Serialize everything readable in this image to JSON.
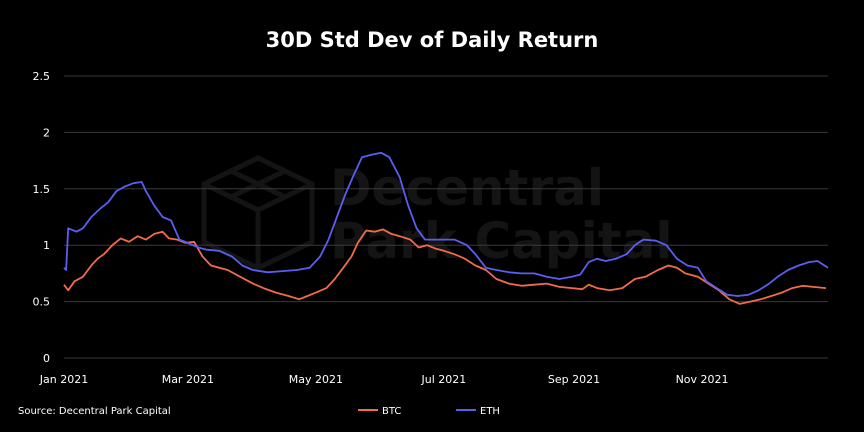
{
  "chart_data": {
    "type": "line",
    "title": "30D Std Dev of Daily Return",
    "source": "Source: Decentral Park Capital",
    "watermark": [
      "Decentral",
      "Park Capital"
    ],
    "xlabel": "",
    "ylabel": "",
    "x_start": "2021-01-01",
    "x_end": "2021-12-31",
    "x_ticks": [
      {
        "label": "Jan 2021",
        "date": "2021-01-01"
      },
      {
        "label": "Mar 2021",
        "date": "2021-03-01"
      },
      {
        "label": "May 2021",
        "date": "2021-05-01"
      },
      {
        "label": "Jul 2021",
        "date": "2021-07-01"
      },
      {
        "label": "Sep 2021",
        "date": "2021-09-01"
      },
      {
        "label": "Nov 2021",
        "date": "2021-11-01"
      }
    ],
    "ylim": [
      0,
      2.5
    ],
    "y_ticks": [
      {
        "label": "0",
        "value": 0
      },
      {
        "label": "0.5",
        "value": 0.5
      },
      {
        "label": "1",
        "value": 1
      },
      {
        "label": "1.5",
        "value": 1.5
      },
      {
        "label": "2",
        "value": 2
      },
      {
        "label": "2.5",
        "value": 2.5
      }
    ],
    "grid": true,
    "legend_position": "bottom-center",
    "series": [
      {
        "name": "BTC",
        "color": "#F26B4B",
        "points": [
          [
            "2021-01-01",
            0.65
          ],
          [
            "2021-01-03",
            0.6
          ],
          [
            "2021-01-06",
            0.68
          ],
          [
            "2021-01-10",
            0.72
          ],
          [
            "2021-01-14",
            0.82
          ],
          [
            "2021-01-17",
            0.88
          ],
          [
            "2021-01-20",
            0.92
          ],
          [
            "2021-01-24",
            1.0
          ],
          [
            "2021-01-28",
            1.06
          ],
          [
            "2021-02-01",
            1.03
          ],
          [
            "2021-02-05",
            1.08
          ],
          [
            "2021-02-09",
            1.05
          ],
          [
            "2021-02-13",
            1.1
          ],
          [
            "2021-02-17",
            1.12
          ],
          [
            "2021-02-20",
            1.06
          ],
          [
            "2021-02-24",
            1.05
          ],
          [
            "2021-02-28",
            1.02
          ],
          [
            "2021-03-04",
            1.03
          ],
          [
            "2021-03-08",
            0.9
          ],
          [
            "2021-03-12",
            0.82
          ],
          [
            "2021-03-16",
            0.8
          ],
          [
            "2021-03-20",
            0.78
          ],
          [
            "2021-03-26",
            0.72
          ],
          [
            "2021-04-01",
            0.66
          ],
          [
            "2021-04-06",
            0.62
          ],
          [
            "2021-04-12",
            0.58
          ],
          [
            "2021-04-18",
            0.55
          ],
          [
            "2021-04-23",
            0.52
          ],
          [
            "2021-04-27",
            0.55
          ],
          [
            "2021-05-01",
            0.58
          ],
          [
            "2021-05-06",
            0.62
          ],
          [
            "2021-05-10",
            0.7
          ],
          [
            "2021-05-14",
            0.8
          ],
          [
            "2021-05-18",
            0.9
          ],
          [
            "2021-05-21",
            1.02
          ],
          [
            "2021-05-25",
            1.13
          ],
          [
            "2021-05-29",
            1.12
          ],
          [
            "2021-06-02",
            1.14
          ],
          [
            "2021-06-06",
            1.1
          ],
          [
            "2021-06-10",
            1.08
          ],
          [
            "2021-06-15",
            1.05
          ],
          [
            "2021-06-19",
            0.98
          ],
          [
            "2021-06-23",
            1.0
          ],
          [
            "2021-06-27",
            0.97
          ],
          [
            "2021-07-01",
            0.95
          ],
          [
            "2021-07-06",
            0.92
          ],
          [
            "2021-07-11",
            0.88
          ],
          [
            "2021-07-16",
            0.82
          ],
          [
            "2021-07-21",
            0.78
          ],
          [
            "2021-07-26",
            0.7
          ],
          [
            "2021-08-01",
            0.66
          ],
          [
            "2021-08-07",
            0.64
          ],
          [
            "2021-08-13",
            0.65
          ],
          [
            "2021-08-19",
            0.66
          ],
          [
            "2021-08-25",
            0.63
          ],
          [
            "2021-08-31",
            0.62
          ],
          [
            "2021-09-05",
            0.61
          ],
          [
            "2021-09-08",
            0.65
          ],
          [
            "2021-09-12",
            0.62
          ],
          [
            "2021-09-18",
            0.6
          ],
          [
            "2021-09-24",
            0.62
          ],
          [
            "2021-09-30",
            0.7
          ],
          [
            "2021-10-05",
            0.72
          ],
          [
            "2021-10-11",
            0.78
          ],
          [
            "2021-10-16",
            0.82
          ],
          [
            "2021-10-20",
            0.8
          ],
          [
            "2021-10-24",
            0.75
          ],
          [
            "2021-10-30",
            0.72
          ],
          [
            "2021-11-04",
            0.66
          ],
          [
            "2021-11-09",
            0.6
          ],
          [
            "2021-11-14",
            0.52
          ],
          [
            "2021-11-19",
            0.48
          ],
          [
            "2021-11-24",
            0.5
          ],
          [
            "2021-11-29",
            0.52
          ],
          [
            "2021-12-04",
            0.55
          ],
          [
            "2021-12-09",
            0.58
          ],
          [
            "2021-12-14",
            0.62
          ],
          [
            "2021-12-19",
            0.64
          ],
          [
            "2021-12-24",
            0.63
          ],
          [
            "2021-12-30",
            0.62
          ]
        ]
      },
      {
        "name": "ETH",
        "color": "#5B5EF2",
        "points": [
          [
            "2021-01-01",
            0.8
          ],
          [
            "2021-01-02",
            0.78
          ],
          [
            "2021-01-03",
            1.15
          ],
          [
            "2021-01-07",
            1.12
          ],
          [
            "2021-01-10",
            1.15
          ],
          [
            "2021-01-14",
            1.25
          ],
          [
            "2021-01-18",
            1.32
          ],
          [
            "2021-01-22",
            1.38
          ],
          [
            "2021-01-26",
            1.48
          ],
          [
            "2021-01-30",
            1.52
          ],
          [
            "2021-02-03",
            1.55
          ],
          [
            "2021-02-07",
            1.56
          ],
          [
            "2021-02-09",
            1.48
          ],
          [
            "2021-02-13",
            1.35
          ],
          [
            "2021-02-17",
            1.25
          ],
          [
            "2021-02-21",
            1.22
          ],
          [
            "2021-02-25",
            1.05
          ],
          [
            "2021-03-01",
            1.02
          ],
          [
            "2021-03-06",
            0.98
          ],
          [
            "2021-03-10",
            0.96
          ],
          [
            "2021-03-16",
            0.95
          ],
          [
            "2021-03-22",
            0.9
          ],
          [
            "2021-03-27",
            0.82
          ],
          [
            "2021-04-01",
            0.78
          ],
          [
            "2021-04-08",
            0.76
          ],
          [
            "2021-04-15",
            0.77
          ],
          [
            "2021-04-22",
            0.78
          ],
          [
            "2021-04-28",
            0.8
          ],
          [
            "2021-05-03",
            0.9
          ],
          [
            "2021-05-07",
            1.05
          ],
          [
            "2021-05-11",
            1.25
          ],
          [
            "2021-05-15",
            1.45
          ],
          [
            "2021-05-19",
            1.62
          ],
          [
            "2021-05-23",
            1.78
          ],
          [
            "2021-05-27",
            1.8
          ],
          [
            "2021-06-01",
            1.82
          ],
          [
            "2021-06-05",
            1.78
          ],
          [
            "2021-06-10",
            1.6
          ],
          [
            "2021-06-14",
            1.35
          ],
          [
            "2021-06-18",
            1.15
          ],
          [
            "2021-06-22",
            1.05
          ],
          [
            "2021-06-27",
            1.05
          ],
          [
            "2021-07-01",
            1.05
          ],
          [
            "2021-07-06",
            1.05
          ],
          [
            "2021-07-12",
            1.0
          ],
          [
            "2021-07-16",
            0.92
          ],
          [
            "2021-07-21",
            0.8
          ],
          [
            "2021-07-26",
            0.78
          ],
          [
            "2021-08-01",
            0.76
          ],
          [
            "2021-08-07",
            0.75
          ],
          [
            "2021-08-13",
            0.75
          ],
          [
            "2021-08-19",
            0.72
          ],
          [
            "2021-08-25",
            0.7
          ],
          [
            "2021-08-31",
            0.72
          ],
          [
            "2021-09-04",
            0.74
          ],
          [
            "2021-09-08",
            0.85
          ],
          [
            "2021-09-12",
            0.88
          ],
          [
            "2021-09-16",
            0.86
          ],
          [
            "2021-09-21",
            0.88
          ],
          [
            "2021-09-26",
            0.92
          ],
          [
            "2021-09-30",
            1.0
          ],
          [
            "2021-10-04",
            1.05
          ],
          [
            "2021-10-10",
            1.04
          ],
          [
            "2021-10-15",
            1.0
          ],
          [
            "2021-10-20",
            0.88
          ],
          [
            "2021-10-25",
            0.82
          ],
          [
            "2021-10-30",
            0.8
          ],
          [
            "2021-11-03",
            0.68
          ],
          [
            "2021-11-08",
            0.62
          ],
          [
            "2021-11-13",
            0.56
          ],
          [
            "2021-11-18",
            0.55
          ],
          [
            "2021-11-23",
            0.56
          ],
          [
            "2021-11-28",
            0.6
          ],
          [
            "2021-12-03",
            0.66
          ],
          [
            "2021-12-07",
            0.72
          ],
          [
            "2021-12-12",
            0.78
          ],
          [
            "2021-12-17",
            0.82
          ],
          [
            "2021-12-22",
            0.85
          ],
          [
            "2021-12-26",
            0.86
          ],
          [
            "2021-12-31",
            0.8
          ]
        ]
      }
    ]
  }
}
